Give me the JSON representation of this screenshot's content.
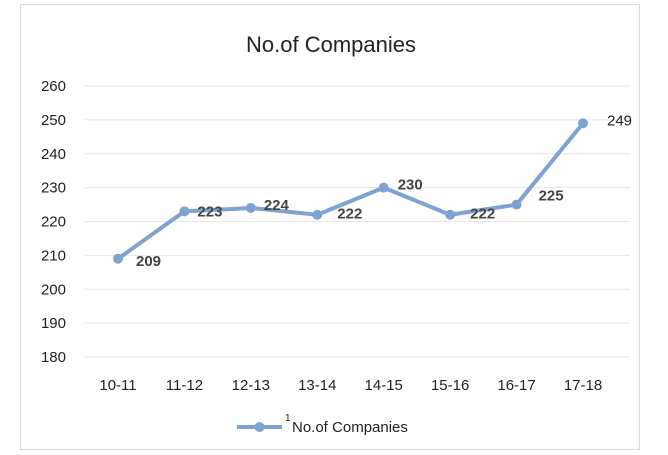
{
  "chart_data": {
    "type": "line",
    "title": "No.of Companies",
    "categories": [
      "10-11",
      "11-12",
      "12-13",
      "13-14",
      "14-15",
      "15-16",
      "16-17",
      "17-18"
    ],
    "series": [
      {
        "name": "No.of Companies",
        "values": [
          209,
          223,
          224,
          222,
          230,
          222,
          225,
          249
        ],
        "color": "#7ea3d1"
      }
    ],
    "data_labels": [
      "209",
      "223",
      "224",
      "222",
      "230",
      "222",
      "225",
      "249"
    ],
    "yticks": [
      "180",
      "190",
      "200",
      "210",
      "220",
      "230",
      "240",
      "250",
      "260"
    ],
    "ylim": [
      180,
      260
    ],
    "grid": true,
    "legend": {
      "position": "bottom",
      "marker_superscript": "1",
      "label": "No.of Companies"
    }
  }
}
